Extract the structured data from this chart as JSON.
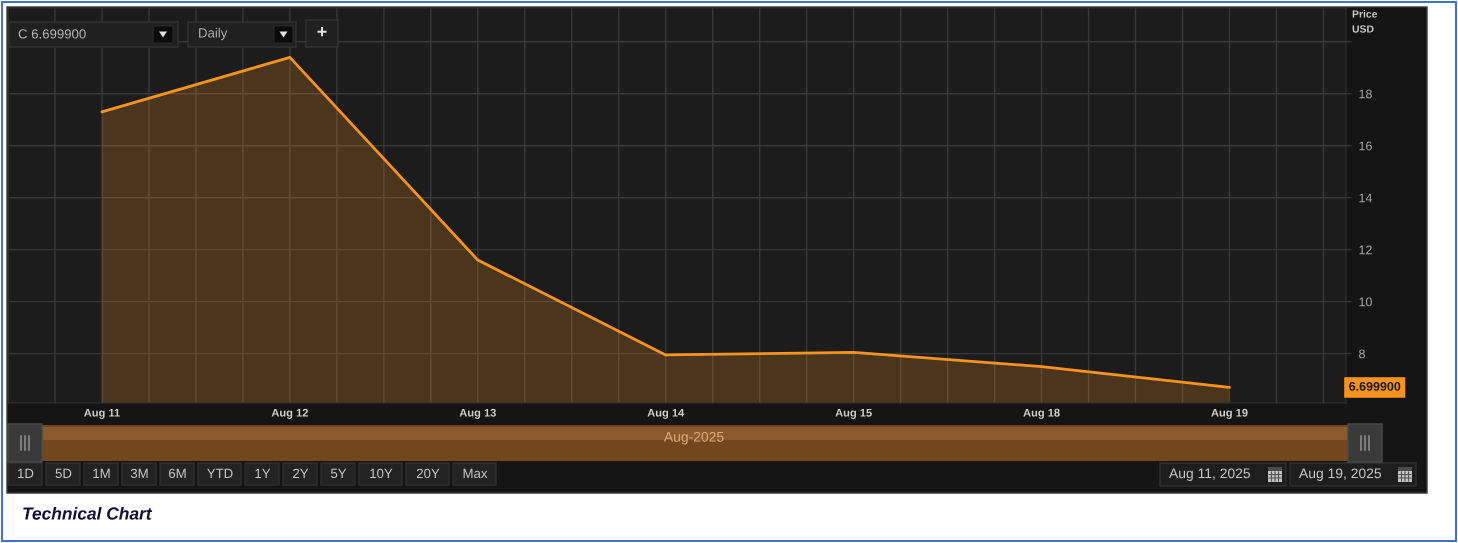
{
  "chart_data": {
    "type": "area",
    "categories": [
      "Aug 11",
      "Aug 12",
      "Aug 13",
      "Aug 14",
      "Aug 15",
      "Aug 18",
      "Aug 19"
    ],
    "series": [
      {
        "color": "#f7931e",
        "values": [
          17.3,
          19.4,
          11.6,
          7.95,
          8.05,
          7.5,
          6.7
        ]
      }
    ],
    "ylabel": "Price\nUSD",
    "ylim": [
      6.1,
      21.3
    ],
    "yticks": [
      8,
      10,
      12,
      14,
      16,
      18,
      {
        "value": 20,
        "label": null
      }
    ],
    "grid": true,
    "annotations": [
      "C 6.699900",
      "Daily",
      "+",
      "Aug-2025",
      "1D",
      "5D",
      "1M",
      "3M",
      "6M",
      "YTD",
      "1Y",
      "2Y",
      "5Y",
      "10Y",
      "20Y",
      "Max",
      "Aug 11, 2025",
      "Aug 19, 2025",
      "Technical Chart",
      "6.699900"
    ]
  }
}
